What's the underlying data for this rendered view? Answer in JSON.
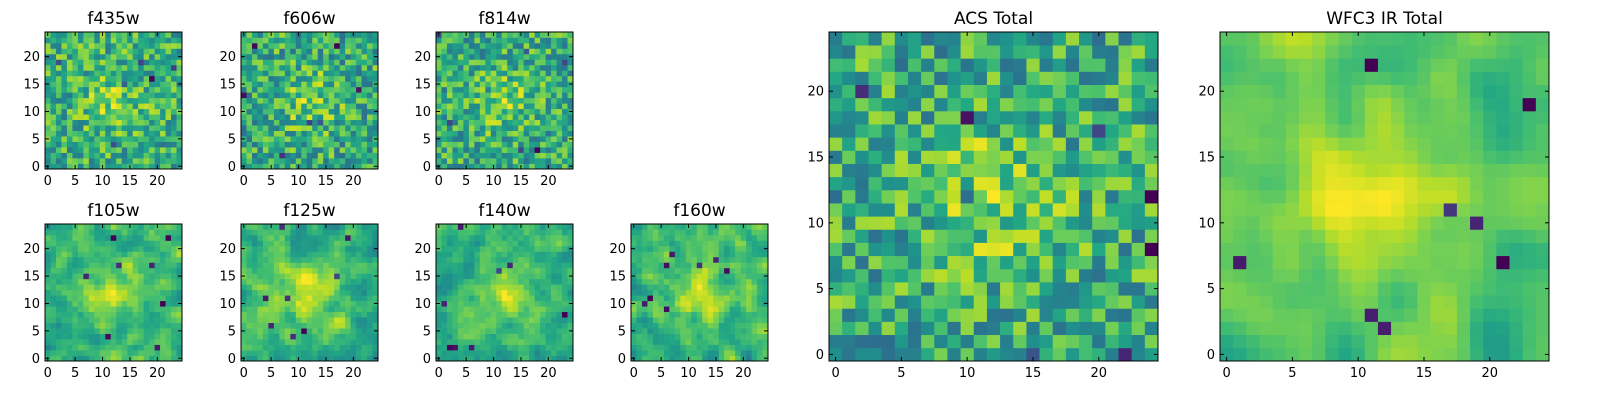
{
  "chart_data": [
    {
      "type": "heatmap",
      "title": "f435w",
      "grid": [
        25,
        25
      ],
      "seed": 11,
      "smooth": 0,
      "xticks": [
        0,
        5,
        10,
        15,
        20
      ],
      "yticks": [
        0,
        5,
        10,
        15,
        20
      ],
      "xlim": [
        -0.5,
        24.5
      ],
      "ylim": [
        -0.5,
        24.5
      ],
      "colormap": "viridis"
    },
    {
      "type": "heatmap",
      "title": "f606w",
      "grid": [
        25,
        25
      ],
      "seed": 23,
      "smooth": 0,
      "xticks": [
        0,
        5,
        10,
        15,
        20
      ],
      "yticks": [
        0,
        5,
        10,
        15,
        20
      ],
      "xlim": [
        -0.5,
        24.5
      ],
      "ylim": [
        -0.5,
        24.5
      ],
      "colormap": "viridis"
    },
    {
      "type": "heatmap",
      "title": "f814w",
      "grid": [
        25,
        25
      ],
      "seed": 37,
      "smooth": 0,
      "xticks": [
        0,
        5,
        10,
        15,
        20
      ],
      "yticks": [
        0,
        5,
        10,
        15,
        20
      ],
      "xlim": [
        -0.5,
        24.5
      ],
      "ylim": [
        -0.5,
        24.5
      ],
      "colormap": "viridis"
    },
    {
      "type": "heatmap",
      "title": "f105w",
      "grid": [
        25,
        25
      ],
      "seed": 41,
      "smooth": 1,
      "xticks": [
        0,
        5,
        10,
        15,
        20
      ],
      "yticks": [
        0,
        5,
        10,
        15,
        20
      ],
      "xlim": [
        -0.5,
        24.5
      ],
      "ylim": [
        -0.5,
        24.5
      ],
      "colormap": "viridis"
    },
    {
      "type": "heatmap",
      "title": "f125w",
      "grid": [
        25,
        25
      ],
      "seed": 53,
      "smooth": 1,
      "xticks": [
        0,
        5,
        10,
        15,
        20
      ],
      "yticks": [
        0,
        5,
        10,
        15,
        20
      ],
      "xlim": [
        -0.5,
        24.5
      ],
      "ylim": [
        -0.5,
        24.5
      ],
      "colormap": "viridis"
    },
    {
      "type": "heatmap",
      "title": "f140w",
      "grid": [
        25,
        25
      ],
      "seed": 67,
      "smooth": 1,
      "xticks": [
        0,
        5,
        10,
        15,
        20
      ],
      "yticks": [
        0,
        5,
        10,
        15,
        20
      ],
      "xlim": [
        -0.5,
        24.5
      ],
      "ylim": [
        -0.5,
        24.5
      ],
      "colormap": "viridis"
    },
    {
      "type": "heatmap",
      "title": "f160w",
      "grid": [
        25,
        25
      ],
      "seed": 79,
      "smooth": 1,
      "xticks": [
        0,
        5,
        10,
        15,
        20
      ],
      "yticks": [
        0,
        5,
        10,
        15,
        20
      ],
      "xlim": [
        -0.5,
        24.5
      ],
      "ylim": [
        -0.5,
        24.5
      ],
      "colormap": "viridis"
    },
    {
      "type": "heatmap",
      "title": "ACS Total",
      "grid": [
        25,
        25
      ],
      "seed": 97,
      "smooth": 0,
      "xticks": [
        0,
        5,
        10,
        15,
        20
      ],
      "yticks": [
        0,
        5,
        10,
        15,
        20
      ],
      "xlim": [
        -0.5,
        24.5
      ],
      "ylim": [
        -0.5,
        24.5
      ],
      "colormap": "viridis"
    },
    {
      "type": "heatmap",
      "title": "WFC3 IR Total",
      "grid": [
        25,
        25
      ],
      "seed": 131,
      "smooth": 2,
      "xticks": [
        0,
        5,
        10,
        15,
        20
      ],
      "yticks": [
        0,
        5,
        10,
        15,
        20
      ],
      "xlim": [
        -0.5,
        24.5
      ],
      "ylim": [
        -0.5,
        24.5
      ],
      "colormap": "viridis"
    }
  ]
}
